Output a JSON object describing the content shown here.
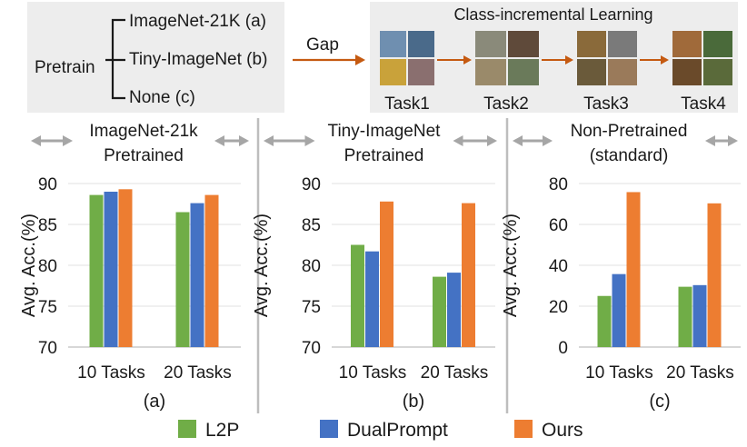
{
  "top": {
    "pretrain_label": "Pretrain",
    "options": [
      "ImageNet-21K (a)",
      "Tiny-ImageNet (b)",
      "None (c)"
    ],
    "gap_label": "Gap",
    "cil_title": "Class-incremental Learning",
    "tasks": [
      "Task1",
      "Task2",
      "Task3",
      "Task4"
    ]
  },
  "legend": [
    {
      "name": "L2P",
      "color": "#70ad47"
    },
    {
      "name": "DualPrompt",
      "color": "#4472c4"
    },
    {
      "name": "Ours",
      "color": "#ed7d31"
    }
  ],
  "colors": {
    "l2p": "#70ad47",
    "dualprompt": "#4472c4",
    "ours": "#ed7d31",
    "arrow_gray": "#a6a6a6",
    "arrow_orange": "#c55a11",
    "panel_bg": "#ededed"
  },
  "chart_data": [
    {
      "type": "bar",
      "title": "ImageNet-21k\nPretrained",
      "subplot_label": "(a)",
      "xlabel": "",
      "ylabel": "Avg. Acc.(%)",
      "ylim": [
        70,
        90
      ],
      "yticks": [
        70,
        75,
        80,
        85,
        90
      ],
      "categories": [
        "10 Tasks",
        "20 Tasks"
      ],
      "series": [
        {
          "name": "L2P",
          "values": [
            88.6,
            86.5
          ]
        },
        {
          "name": "DualPrompt",
          "values": [
            89.0,
            87.6
          ]
        },
        {
          "name": "Ours",
          "values": [
            89.3,
            88.6
          ]
        }
      ]
    },
    {
      "type": "bar",
      "title": "Tiny-ImageNet\nPretrained",
      "subplot_label": "(b)",
      "xlabel": "",
      "ylabel": "Avg. Acc.(%)",
      "ylim": [
        70,
        90
      ],
      "yticks": [
        70,
        75,
        80,
        85,
        90
      ],
      "categories": [
        "10 Tasks",
        "20 Tasks"
      ],
      "series": [
        {
          "name": "L2P",
          "values": [
            82.5,
            78.6
          ]
        },
        {
          "name": "DualPrompt",
          "values": [
            81.7,
            79.1
          ]
        },
        {
          "name": "Ours",
          "values": [
            87.8,
            87.6
          ]
        }
      ]
    },
    {
      "type": "bar",
      "title": "Non-Pretrained\n(standard)",
      "subplot_label": "(c)",
      "xlabel": "",
      "ylabel": "Avg. Acc.(%)",
      "ylim": [
        0,
        80
      ],
      "yticks": [
        0,
        20,
        40,
        60,
        80
      ],
      "categories": [
        "10 Tasks",
        "20 Tasks"
      ],
      "series": [
        {
          "name": "L2P",
          "values": [
            25.0,
            29.5
          ]
        },
        {
          "name": "DualPrompt",
          "values": [
            35.7,
            30.3
          ]
        },
        {
          "name": "Ours",
          "values": [
            75.8,
            70.3
          ]
        }
      ]
    }
  ]
}
